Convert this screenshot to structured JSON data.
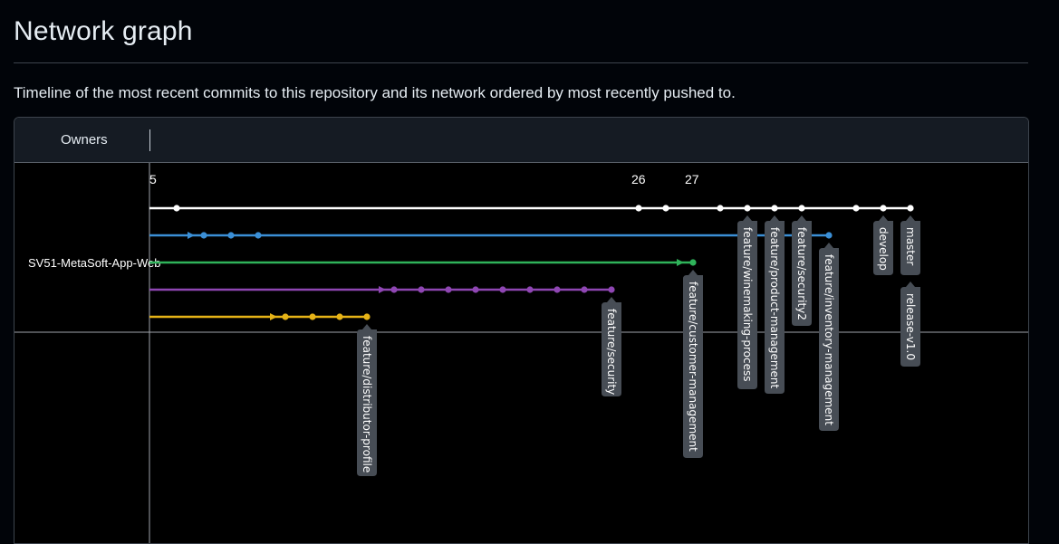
{
  "page": {
    "title": "Network graph",
    "description": "Timeline of the most recent commits to this repository and its network ordered by most recently pushed to."
  },
  "graph": {
    "owners_header": "Owners",
    "owner": "SV51-MetaSoft-App-Web",
    "dates": [
      "5",
      "26",
      "27"
    ],
    "colors": {
      "white": "#ffffff",
      "blue": "#3b8fd6",
      "green": "#2fb35a",
      "purple": "#8f46b3",
      "yellow": "#e6b317",
      "label_bg": "#474d55",
      "grid": "#a0a5ab"
    },
    "rows": [
      {
        "name": "white",
        "color": "#ffffff"
      },
      {
        "name": "blue",
        "color": "#3b8fd6"
      },
      {
        "name": "green",
        "color": "#2fb35a"
      },
      {
        "name": "purple",
        "color": "#8f46b3"
      },
      {
        "name": "yellow",
        "color": "#e6b317"
      }
    ],
    "branches": [
      "feature/distributor-profile",
      "feature/security",
      "feature/customer-management",
      "feature/winemaking-process",
      "feature/product-management",
      "feature/security2",
      "feature/inventory-management",
      "develop",
      "master",
      "release-v1.0"
    ]
  }
}
